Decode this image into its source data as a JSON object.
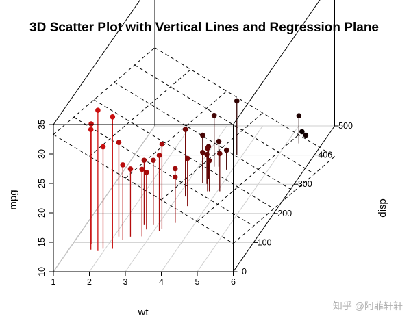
{
  "watermark": "知乎 @阿菲轩轩",
  "chart_data": {
    "type": "scatter",
    "title": "3D Scatter Plot with Vertical Lines and Regression Plane",
    "xlabel": "wt",
    "ylabel": "mpg",
    "zlabel": "disp",
    "xlim": [
      1,
      6
    ],
    "ylim": [
      10,
      35
    ],
    "zlim": [
      0,
      500
    ],
    "x_ticks": [
      "1",
      "2",
      "3",
      "4",
      "5",
      "6"
    ],
    "y_ticks": [
      "10",
      "15",
      "20",
      "25",
      "30",
      "35"
    ],
    "z_ticks": [
      "0",
      "100",
      "200",
      "300",
      "400",
      "500"
    ],
    "color_low": "#ee1111",
    "color_high": "#000000",
    "drop_lines": true,
    "regression_plane": {
      "intercept": 37.0,
      "slope_wt": -3.7,
      "slope_disp": -0.02
    },
    "points": [
      {
        "wt": 2.62,
        "disp": 160,
        "mpg": 21.0
      },
      {
        "wt": 2.875,
        "disp": 160,
        "mpg": 21.0
      },
      {
        "wt": 2.32,
        "disp": 108,
        "mpg": 22.8
      },
      {
        "wt": 3.215,
        "disp": 258,
        "mpg": 21.4
      },
      {
        "wt": 3.44,
        "disp": 360,
        "mpg": 18.7
      },
      {
        "wt": 3.46,
        "disp": 225,
        "mpg": 18.1
      },
      {
        "wt": 3.57,
        "disp": 360,
        "mpg": 14.3
      },
      {
        "wt": 3.19,
        "disp": 146.7,
        "mpg": 24.4
      },
      {
        "wt": 3.15,
        "disp": 140.8,
        "mpg": 22.8
      },
      {
        "wt": 3.44,
        "disp": 167.6,
        "mpg": 19.2
      },
      {
        "wt": 3.44,
        "disp": 167.6,
        "mpg": 17.8
      },
      {
        "wt": 4.07,
        "disp": 275.8,
        "mpg": 16.4
      },
      {
        "wt": 3.73,
        "disp": 275.8,
        "mpg": 17.3
      },
      {
        "wt": 3.78,
        "disp": 275.8,
        "mpg": 15.2
      },
      {
        "wt": 5.25,
        "disp": 472,
        "mpg": 10.4
      },
      {
        "wt": 5.424,
        "disp": 460,
        "mpg": 10.4
      },
      {
        "wt": 5.345,
        "disp": 440,
        "mpg": 14.7
      },
      {
        "wt": 2.2,
        "disp": 78.7,
        "mpg": 32.4
      },
      {
        "wt": 1.615,
        "disp": 75.7,
        "mpg": 30.4
      },
      {
        "wt": 1.835,
        "disp": 71.1,
        "mpg": 33.9
      },
      {
        "wt": 2.465,
        "disp": 120.1,
        "mpg": 21.5
      },
      {
        "wt": 3.52,
        "disp": 318,
        "mpg": 15.5
      },
      {
        "wt": 3.435,
        "disp": 304,
        "mpg": 15.2
      },
      {
        "wt": 3.84,
        "disp": 350,
        "mpg": 13.3
      },
      {
        "wt": 3.845,
        "disp": 400,
        "mpg": 19.2
      },
      {
        "wt": 1.935,
        "disp": 79,
        "mpg": 27.3
      },
      {
        "wt": 2.14,
        "disp": 120.3,
        "mpg": 26.0
      },
      {
        "wt": 1.513,
        "disp": 95.1,
        "mpg": 30.4
      },
      {
        "wt": 3.17,
        "disp": 351,
        "mpg": 15.8
      },
      {
        "wt": 2.77,
        "disp": 145,
        "mpg": 19.7
      },
      {
        "wt": 3.57,
        "disp": 301,
        "mpg": 15.0
      },
      {
        "wt": 2.78,
        "disp": 121,
        "mpg": 21.4
      }
    ]
  }
}
